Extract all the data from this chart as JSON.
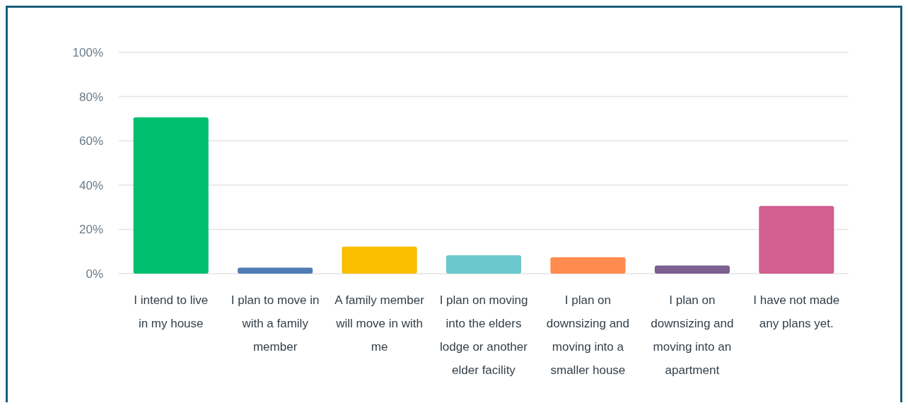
{
  "chart_data": {
    "type": "bar",
    "categories": [
      "I intend to live in my house",
      "I plan to move in with a family member",
      "A family member will move in with me",
      "I plan on moving into the elders lodge or another elder facility",
      "I plan on downsizing and moving into a smaller house",
      "I plan on downsizing and moving into an apartment",
      "I have not made any plans yet."
    ],
    "values": [
      70.6,
      2.7,
      12.2,
      8.3,
      7.4,
      3.7,
      30.6
    ],
    "colors": [
      "#00bf6f",
      "#507cb6",
      "#f9be00",
      "#6bc8cd",
      "#ff8b4f",
      "#7d5e90",
      "#d25f90"
    ],
    "ylim": [
      0,
      100
    ],
    "yticks": [
      {
        "value": 0,
        "label": "0%"
      },
      {
        "value": 20,
        "label": "20%"
      },
      {
        "value": 40,
        "label": "40%"
      },
      {
        "value": 60,
        "label": "60%"
      },
      {
        "value": 80,
        "label": "80%"
      },
      {
        "value": 100,
        "label": "100%"
      }
    ],
    "grid": "y"
  }
}
